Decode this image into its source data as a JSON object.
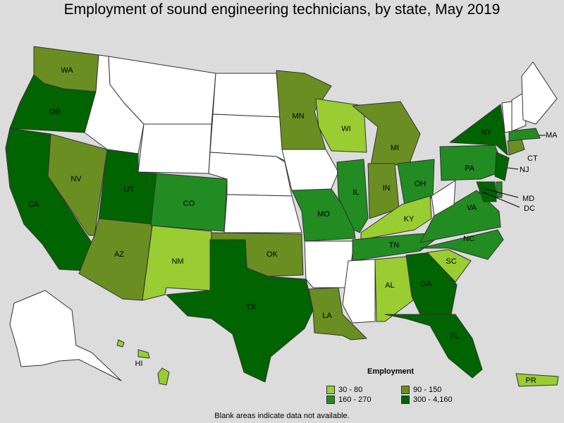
{
  "title": "Employment of sound engineering technicians, by state, May 2019",
  "legend": {
    "title": "Employment",
    "items": [
      {
        "label": "30 - 80",
        "color": "#9acd32"
      },
      {
        "label": "90 - 150",
        "color": "#6b8e23"
      },
      {
        "label": "160 - 270",
        "color": "#228b22"
      },
      {
        "label": "300 - 4,160",
        "color": "#006400"
      }
    ]
  },
  "footnote": "Blank areas indicate data not available.",
  "states": [
    {
      "code": "WA",
      "label": "WA",
      "bin": 1
    },
    {
      "code": "OR",
      "label": "OR",
      "bin": 3
    },
    {
      "code": "CA",
      "label": "CA",
      "bin": 3
    },
    {
      "code": "NV",
      "label": "NV",
      "bin": 1
    },
    {
      "code": "ID",
      "label": "",
      "bin": null
    },
    {
      "code": "MT",
      "label": "",
      "bin": null
    },
    {
      "code": "WY",
      "label": "",
      "bin": null
    },
    {
      "code": "UT",
      "label": "UT",
      "bin": 3
    },
    {
      "code": "AZ",
      "label": "AZ",
      "bin": 1
    },
    {
      "code": "CO",
      "label": "CO",
      "bin": 2
    },
    {
      "code": "NM",
      "label": "NM",
      "bin": 0
    },
    {
      "code": "ND",
      "label": "",
      "bin": null
    },
    {
      "code": "SD",
      "label": "",
      "bin": null
    },
    {
      "code": "NE",
      "label": "",
      "bin": null
    },
    {
      "code": "KS",
      "label": "",
      "bin": null
    },
    {
      "code": "OK",
      "label": "OK",
      "bin": 1
    },
    {
      "code": "TX",
      "label": "TX",
      "bin": 3
    },
    {
      "code": "MN",
      "label": "MN",
      "bin": 1
    },
    {
      "code": "IA",
      "label": "",
      "bin": null
    },
    {
      "code": "MO",
      "label": "MO",
      "bin": 2
    },
    {
      "code": "AR",
      "label": "",
      "bin": null
    },
    {
      "code": "LA",
      "label": "LA",
      "bin": 1
    },
    {
      "code": "WI",
      "label": "WI",
      "bin": 0
    },
    {
      "code": "IL",
      "label": "IL",
      "bin": 2
    },
    {
      "code": "MI",
      "label": "MI",
      "bin": 1
    },
    {
      "code": "IN",
      "label": "IN",
      "bin": 1
    },
    {
      "code": "OH",
      "label": "OH",
      "bin": 2
    },
    {
      "code": "KY",
      "label": "KY",
      "bin": 0
    },
    {
      "code": "TN",
      "label": "TN",
      "bin": 2
    },
    {
      "code": "MS",
      "label": "",
      "bin": null
    },
    {
      "code": "AL",
      "label": "AL",
      "bin": 0
    },
    {
      "code": "GA",
      "label": "GA",
      "bin": 3
    },
    {
      "code": "FL",
      "label": "FL",
      "bin": 3
    },
    {
      "code": "SC",
      "label": "SC",
      "bin": 0
    },
    {
      "code": "NC",
      "label": "NC",
      "bin": 2
    },
    {
      "code": "VA",
      "label": "VA",
      "bin": 2
    },
    {
      "code": "WV",
      "label": "",
      "bin": null
    },
    {
      "code": "PA",
      "label": "PA",
      "bin": 2
    },
    {
      "code": "NY",
      "label": "NY",
      "bin": 3
    },
    {
      "code": "NJ",
      "label": "NJ",
      "bin": 3
    },
    {
      "code": "DE",
      "label": "",
      "bin": 2
    },
    {
      "code": "MD",
      "label": "MD",
      "bin": 3
    },
    {
      "code": "DC",
      "label": "DC",
      "bin": 3
    },
    {
      "code": "CT",
      "label": "CT",
      "bin": 1
    },
    {
      "code": "MA",
      "label": "MA",
      "bin": 2
    },
    {
      "code": "VT",
      "label": "",
      "bin": null
    },
    {
      "code": "NH",
      "label": "",
      "bin": null
    },
    {
      "code": "ME",
      "label": "",
      "bin": null
    },
    {
      "code": "AK",
      "label": "",
      "bin": null
    },
    {
      "code": "HI",
      "label": "HI",
      "bin": 0
    },
    {
      "code": "PR",
      "label": "PR",
      "bin": 0
    }
  ]
}
